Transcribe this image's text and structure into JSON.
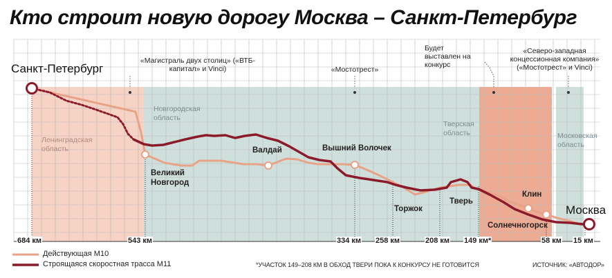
{
  "title": "Кто строит новую дорогу Москва – Санкт-Петербург",
  "endpoints": {
    "start": "Санкт-Петербург",
    "end": "Москва"
  },
  "builders": [
    "«Магистраль двух столиц» («ВТБ-капитал» и Vinci)",
    "«Мостотрест»",
    "Будет выставлен на конкурс",
    "«Северо-западная концессионная компания» («Мостотрест» и Vinci)"
  ],
  "regions": [
    "Ленинградская область",
    "Новгородская область",
    "Тверская область",
    "Московская область"
  ],
  "cities": [
    "Великий Новгород",
    "Валдай",
    "Вышний Волочек",
    "Торжок",
    "Тверь",
    "Клин",
    "Солнечногорск"
  ],
  "km_marks": [
    "684 км",
    "543 км",
    "334 км",
    "258 км",
    "208 км",
    "149 км*",
    "58 км",
    "15 км"
  ],
  "legend": {
    "m10": "Действующая М10",
    "m11": "Строящаяся скоростная трасса М11"
  },
  "footnote": "*Участок 149–208 км в обход Твери пока к конкурсу не готовится",
  "source": "Источник: «Автодор»",
  "colors": {
    "m10": "#e8a387",
    "m11": "#8b1a2b",
    "zone_pink": "#f6d3c4",
    "zone_teal": "#cfe0dc",
    "zone_orange": "#ecab92",
    "grid": "#b9b9b9"
  }
}
